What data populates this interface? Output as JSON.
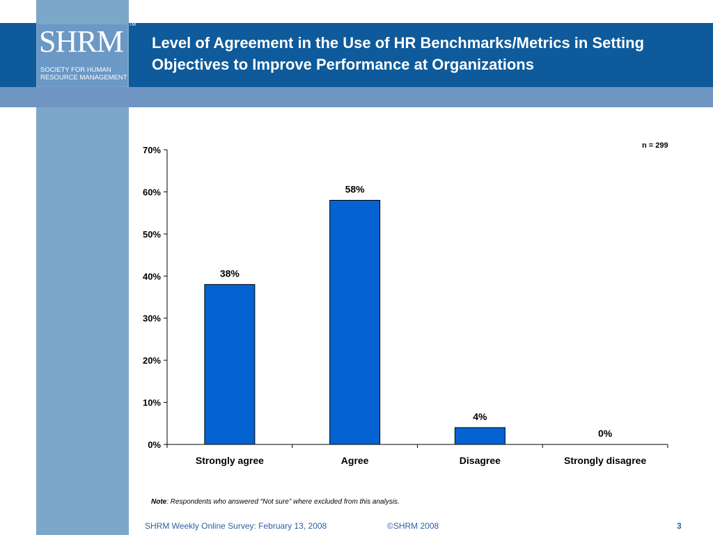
{
  "logo": {
    "word": "SHRM",
    "tm": "TM",
    "subtitle_line1": "SOCIETY FOR HUMAN",
    "subtitle_line2": "RESOURCE MANAGEMENT"
  },
  "title": "Level of Agreement in the Use of HR Benchmarks/Metrics in Setting Objectives to Improve Performance at Organizations",
  "n_label": "n = 299",
  "note": {
    "label": "Note",
    "text": ": Respondents who answered  “Not sure” where excluded from this analysis."
  },
  "footer": {
    "left": "SHRM Weekly Online Survey: February  13, 2008",
    "middle": "©SHRM 2008",
    "page": "3"
  },
  "colors": {
    "header": "#0e5a9a",
    "sidebar": "#7ba7c9",
    "bar": "#0563d1"
  },
  "chart_data": {
    "type": "bar",
    "categories": [
      "Strongly agree",
      "Agree",
      "Disagree",
      "Strongly disagree"
    ],
    "values": [
      38,
      58,
      4,
      0
    ],
    "data_labels": [
      "38%",
      "58%",
      "4%",
      "0%"
    ],
    "yticks": [
      "0%",
      "10%",
      "20%",
      "30%",
      "40%",
      "50%",
      "60%",
      "70%"
    ],
    "ylim": [
      0,
      70
    ],
    "grid": false
  }
}
